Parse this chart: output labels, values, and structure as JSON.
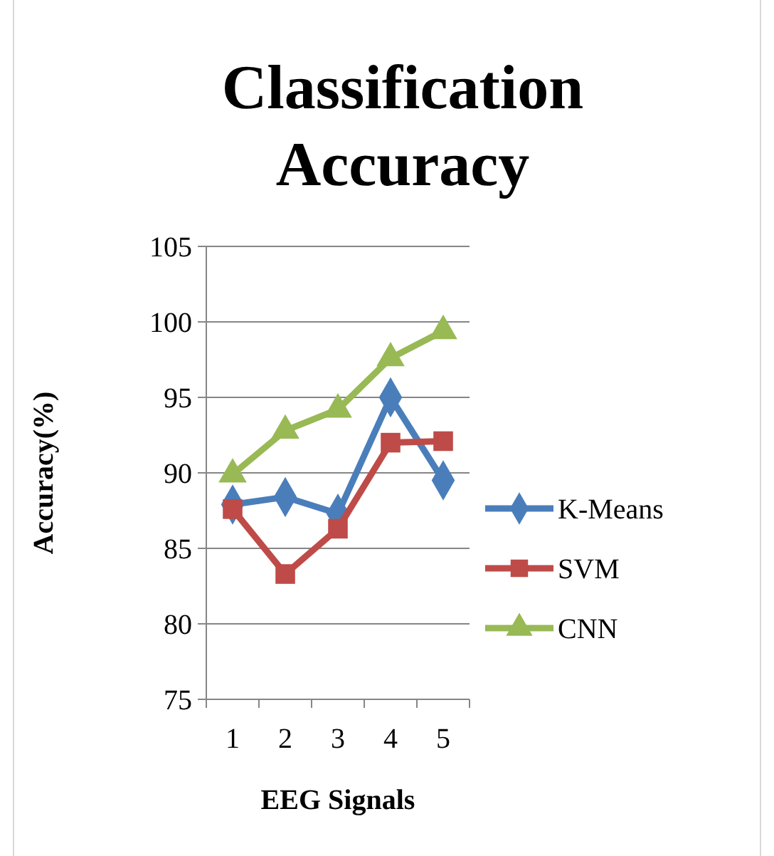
{
  "chart_data": {
    "type": "line",
    "title": "Classification Accuracy",
    "xlabel": "EEG Signals",
    "ylabel": "Accuracy(%)",
    "categories": [
      "1",
      "2",
      "3",
      "4",
      "5"
    ],
    "series": [
      {
        "name": "K-Means",
        "color": "#4a7ebb",
        "marker": "diamond",
        "values": [
          87.9,
          88.4,
          87.3,
          95.0,
          89.5
        ]
      },
      {
        "name": "SVM",
        "color": "#be4b48",
        "marker": "square",
        "values": [
          87.6,
          83.3,
          86.3,
          92.0,
          92.1
        ]
      },
      {
        "name": "CNN",
        "color": "#98b954",
        "marker": "triangle",
        "values": [
          89.9,
          92.8,
          94.2,
          97.6,
          99.4
        ]
      }
    ],
    "ylim": [
      75,
      105
    ],
    "yticks": [
      75,
      80,
      85,
      90,
      95,
      100,
      105
    ],
    "grid": "y",
    "legend": "right"
  }
}
